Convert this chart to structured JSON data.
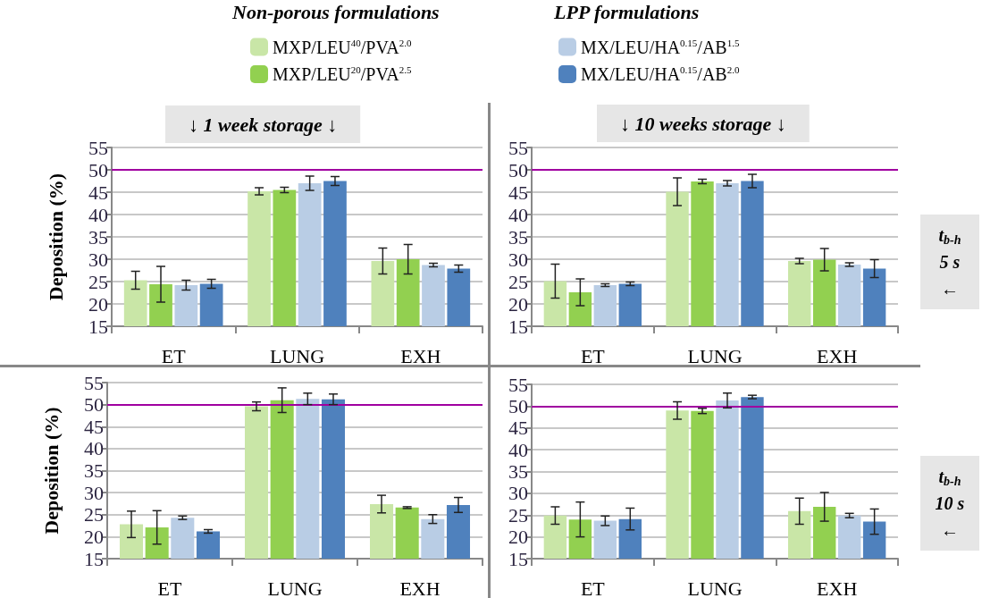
{
  "chart_data": [
    {
      "type": "bar",
      "title": "↓ 1 week storage ↓",
      "ylabel": "Deposition (%)",
      "annotations": [
        "Non-porous formulations",
        "LPP formulations"
      ],
      "categories": [
        "ET",
        "LUNG",
        "EXH"
      ],
      "legend": "top",
      "grid": "y",
      "ylim": [
        15,
        55
      ],
      "yticks": [
        15,
        20,
        25,
        30,
        35,
        40,
        45,
        50,
        55
      ],
      "ref_lines": [
        {
          "axis": "y",
          "value": 50,
          "color": "#a000a0"
        }
      ],
      "series": [
        {
          "name": "MXP/LEU$^{40}$/PVA$^{2.0}$",
          "color": "#c9e6a7",
          "values": [
            25.3,
            45.2,
            29.6
          ],
          "errors": [
            2.0,
            0.8,
            2.9
          ]
        },
        {
          "name": "MXP/LEU$^{20}$/PVA$^{2.5}$",
          "color": "#92d050",
          "values": [
            24.4,
            45.5,
            30.0
          ],
          "errors": [
            4.0,
            0.6,
            3.3
          ]
        },
        {
          "name": "MX/LEU/HA$^{0.15}$/AB$^{1.5}$",
          "color": "#b9cde5",
          "values": [
            24.2,
            47.0,
            28.7
          ],
          "errors": [
            1.1,
            1.6,
            0.4
          ]
        },
        {
          "name": "MX/LEU/HA$^{0.15}$/AB$^{2.0}$",
          "color": "#4f81bd",
          "values": [
            24.5,
            47.5,
            27.9
          ],
          "errors": [
            1.0,
            1.0,
            0.8
          ]
        }
      ]
    },
    {
      "type": "bar",
      "title": "↓ 10 weeks storage ↓",
      "annotations": [
        "t$_{b-h}$\n5 s\n←"
      ],
      "categories": [
        "ET",
        "LUNG",
        "EXH"
      ],
      "grid": "y",
      "ylim": [
        15,
        55
      ],
      "yticks": [
        15,
        20,
        25,
        30,
        35,
        40,
        45,
        50,
        55
      ],
      "ref_lines": [
        {
          "axis": "y",
          "value": 50,
          "color": "#a000a0"
        }
      ],
      "series": [
        {
          "color": "#c9e6a7",
          "values": [
            25.1,
            45.1,
            29.6
          ],
          "errors": [
            3.8,
            3.1,
            0.6
          ]
        },
        {
          "color": "#92d050",
          "values": [
            22.6,
            47.4,
            29.9
          ],
          "errors": [
            3.0,
            0.5,
            2.5
          ]
        },
        {
          "color": "#b9cde5",
          "values": [
            24.2,
            47.0,
            28.8
          ],
          "errors": [
            0.3,
            0.6,
            0.4
          ]
        },
        {
          "color": "#4f81bd",
          "values": [
            24.5,
            47.5,
            27.9
          ],
          "errors": [
            0.4,
            1.5,
            2.0
          ]
        }
      ]
    },
    {
      "type": "bar",
      "ylabel": "Deposition (%)",
      "categories": [
        "ET",
        "LUNG",
        "EXH"
      ],
      "grid": "y",
      "ylim": [
        15,
        55
      ],
      "yticks": [
        15,
        20,
        25,
        30,
        35,
        40,
        45,
        50,
        55
      ],
      "ref_lines": [
        {
          "axis": "y",
          "value": 50,
          "color": "#a000a0"
        }
      ],
      "series": [
        {
          "color": "#c9e6a7",
          "values": [
            22.8,
            49.6,
            27.4
          ],
          "errors": [
            3.0,
            1.0,
            2.0
          ]
        },
        {
          "color": "#92d050",
          "values": [
            22.1,
            51.0,
            26.6
          ],
          "errors": [
            3.8,
            2.8,
            0.2
          ]
        },
        {
          "color": "#b9cde5",
          "values": [
            24.3,
            51.3,
            24.0
          ],
          "errors": [
            0.4,
            1.3,
            1.0
          ]
        },
        {
          "color": "#4f81bd",
          "values": [
            21.2,
            51.2,
            27.2
          ],
          "errors": [
            0.4,
            1.2,
            1.7
          ]
        }
      ]
    },
    {
      "type": "bar",
      "annotations": [
        "t$_{b-h}$\n10 s\n←"
      ],
      "categories": [
        "ET",
        "LUNG",
        "EXH"
      ],
      "grid": "y",
      "ylim": [
        15,
        55
      ],
      "yticks": [
        15,
        20,
        25,
        30,
        35,
        40,
        45,
        50,
        55
      ],
      "ref_lines": [
        {
          "axis": "y",
          "value": 50,
          "color": "#a000a0"
        }
      ],
      "series": [
        {
          "color": "#c9e6a7",
          "values": [
            24.9,
            49.0,
            25.9
          ],
          "errors": [
            2.0,
            2.0,
            3.0
          ]
        },
        {
          "color": "#92d050",
          "values": [
            24.0,
            48.9,
            26.9
          ],
          "errors": [
            4.0,
            0.6,
            3.3
          ]
        },
        {
          "color": "#b9cde5",
          "values": [
            23.7,
            51.3,
            24.9
          ],
          "errors": [
            1.1,
            1.7,
            0.5
          ]
        },
        {
          "color": "#4f81bd",
          "values": [
            24.1,
            52.1,
            23.5
          ],
          "errors": [
            2.5,
            0.4,
            2.9
          ]
        }
      ]
    }
  ]
}
